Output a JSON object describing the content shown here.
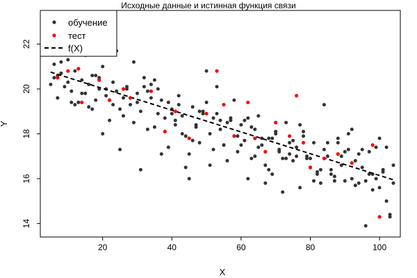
{
  "chart_data": {
    "type": "scatter",
    "title": "Исходные данные и истинная функция связи",
    "xlabel": "X",
    "ylabel": "Y",
    "xlim": [
      2,
      106
    ],
    "ylim": [
      13.4,
      23.5
    ],
    "x_ticks": [
      20,
      40,
      60,
      80,
      100
    ],
    "y_ticks": [
      14,
      16,
      18,
      20,
      22
    ],
    "grid": false,
    "legend_position": "top-left",
    "colors": {
      "train": "#333333",
      "test": "#ff0000",
      "fx": "#000000"
    },
    "legend": {
      "train": "обучение",
      "test": "тест",
      "fx": "f(X)"
    },
    "series": [
      {
        "name": "обучение",
        "kind": "points",
        "x": [
          5,
          6,
          7,
          8,
          9,
          10,
          11,
          12,
          13,
          14,
          15,
          16,
          17,
          18,
          19,
          20,
          21,
          22,
          23,
          24,
          25,
          26,
          27,
          28,
          29,
          30,
          31,
          32,
          33,
          34,
          35,
          36,
          37,
          38,
          39,
          40,
          41,
          42,
          43,
          44,
          45,
          46,
          47,
          48,
          49,
          50,
          51,
          52,
          53,
          54,
          55,
          56,
          57,
          58,
          59,
          60,
          61,
          62,
          63,
          64,
          65,
          66,
          67,
          68,
          69,
          70,
          71,
          72,
          73,
          74,
          75,
          76,
          77,
          78,
          79,
          80,
          81,
          82,
          83,
          84,
          85,
          86,
          87,
          88,
          89,
          90,
          91,
          92,
          93,
          94,
          95,
          96,
          97,
          98,
          99,
          100,
          101,
          102,
          103,
          104,
          5,
          7,
          9,
          11,
          13,
          15,
          17,
          19,
          21,
          23,
          25,
          27,
          29,
          31,
          33,
          35,
          37,
          39,
          41,
          43,
          45,
          47,
          49,
          51,
          53,
          55,
          57,
          59,
          61,
          63,
          65,
          67,
          69,
          71,
          73,
          75,
          77,
          79,
          81,
          83,
          85,
          87,
          89,
          91,
          93,
          95,
          97,
          99,
          101,
          103,
          6,
          10,
          14,
          18,
          22,
          26,
          30,
          34,
          38,
          42,
          46,
          50,
          54,
          58,
          62,
          66,
          70,
          74,
          78,
          82,
          86,
          90,
          94,
          98,
          102,
          8,
          16,
          24,
          32,
          40,
          48,
          56,
          64,
          72,
          80,
          88,
          96,
          104,
          12,
          28,
          44,
          60,
          76,
          92,
          100,
          20,
          36,
          52,
          68,
          84
        ],
        "y": [
          20.2,
          21.1,
          19.6,
          20.7,
          21.8,
          20.3,
          19.9,
          20.8,
          19.4,
          20.4,
          21.5,
          19.2,
          20.6,
          19.5,
          20.0,
          21.0,
          19.7,
          18.6,
          20.3,
          21.7,
          19.1,
          18.8,
          20.0,
          19.3,
          18.5,
          19.8,
          16.4,
          20.1,
          18.2,
          19.6,
          20.4,
          18.9,
          19.5,
          18.1,
          17.4,
          19.1,
          18.4,
          19.7,
          18.8,
          17.9,
          16.0,
          19.2,
          18.3,
          17.6,
          18.9,
          19.4,
          18.0,
          17.3,
          20.1,
          18.2,
          17.5,
          16.8,
          18.6,
          17.9,
          17.2,
          18.4,
          17.7,
          16.0,
          18.3,
          17.0,
          18.8,
          17.5,
          16.6,
          17.8,
          16.2,
          18.0,
          17.3,
          16.9,
          18.5,
          17.6,
          16.8,
          17.4,
          15.6,
          18.1,
          17.0,
          16.5,
          17.6,
          16.2,
          15.8,
          19.3,
          17.0,
          16.4,
          16.1,
          17.8,
          16.6,
          15.9,
          17.3,
          16.0,
          16.8,
          15.8,
          16.5,
          13.9,
          17.2,
          15.5,
          16.0,
          17.8,
          16.3,
          15.0,
          14.4,
          15.8,
          21.9,
          20.6,
          20.1,
          19.4,
          20.9,
          19.8,
          19.1,
          20.5,
          20.0,
          19.3,
          17.3,
          20.1,
          21.2,
          19.0,
          19.9,
          18.3,
          17.1,
          19.4,
          18.6,
          18.0,
          17.1,
          18.4,
          19.0,
          16.6,
          18.9,
          17.5,
          18.7,
          17.9,
          18.6,
          16.9,
          17.4,
          15.8,
          17.8,
          17.2,
          16.9,
          17.7,
          18.4,
          16.9,
          15.9,
          16.4,
          17.6,
          15.9,
          17.0,
          18.0,
          15.7,
          17.3,
          16.2,
          17.4,
          16.4,
          14.3,
          20.5,
          21.3,
          19.8,
          20.6,
          19.5,
          19.6,
          19.4,
          20.2,
          18.7,
          19.3,
          17.7,
          20.8,
          18.6,
          19.5,
          18.7,
          17.8,
          18.1,
          17.1,
          17.9,
          16.3,
          16.2,
          17.2,
          17.1,
          16.2,
          17.4,
          21.2,
          20.2,
          19.9,
          20.5,
          18.9,
          19.0,
          18.5,
          18.2,
          15.4,
          16.9,
          17.6,
          15.9,
          16.6,
          19.3,
          19.6,
          16.5,
          17.5,
          17.0,
          18.2,
          15.6,
          18.0,
          20.0,
          18.7,
          16.4,
          17.3
        ]
      },
      {
        "name": "тест",
        "kind": "points",
        "x": [
          7,
          10,
          13,
          14,
          19,
          22,
          26,
          28,
          34,
          38,
          41,
          45,
          50,
          53,
          55,
          58,
          62,
          64,
          67,
          70,
          74,
          76,
          78,
          80,
          84,
          88,
          92,
          98,
          100
        ],
        "y": [
          20.5,
          20.8,
          20.9,
          19.4,
          20.4,
          19.5,
          20.0,
          19.6,
          19.9,
          18.1,
          19.0,
          17.8,
          18.9,
          20.8,
          19.3,
          17.9,
          19.4,
          17.8,
          17.2,
          18.5,
          17.9,
          19.7,
          17.6,
          16.5,
          16.9,
          17.1,
          16.7,
          17.5,
          14.3
        ]
      },
      {
        "name": "f(X)",
        "kind": "dashed-line",
        "x": [
          5,
          104
        ],
        "y": [
          20.75,
          15.95
        ]
      }
    ]
  }
}
